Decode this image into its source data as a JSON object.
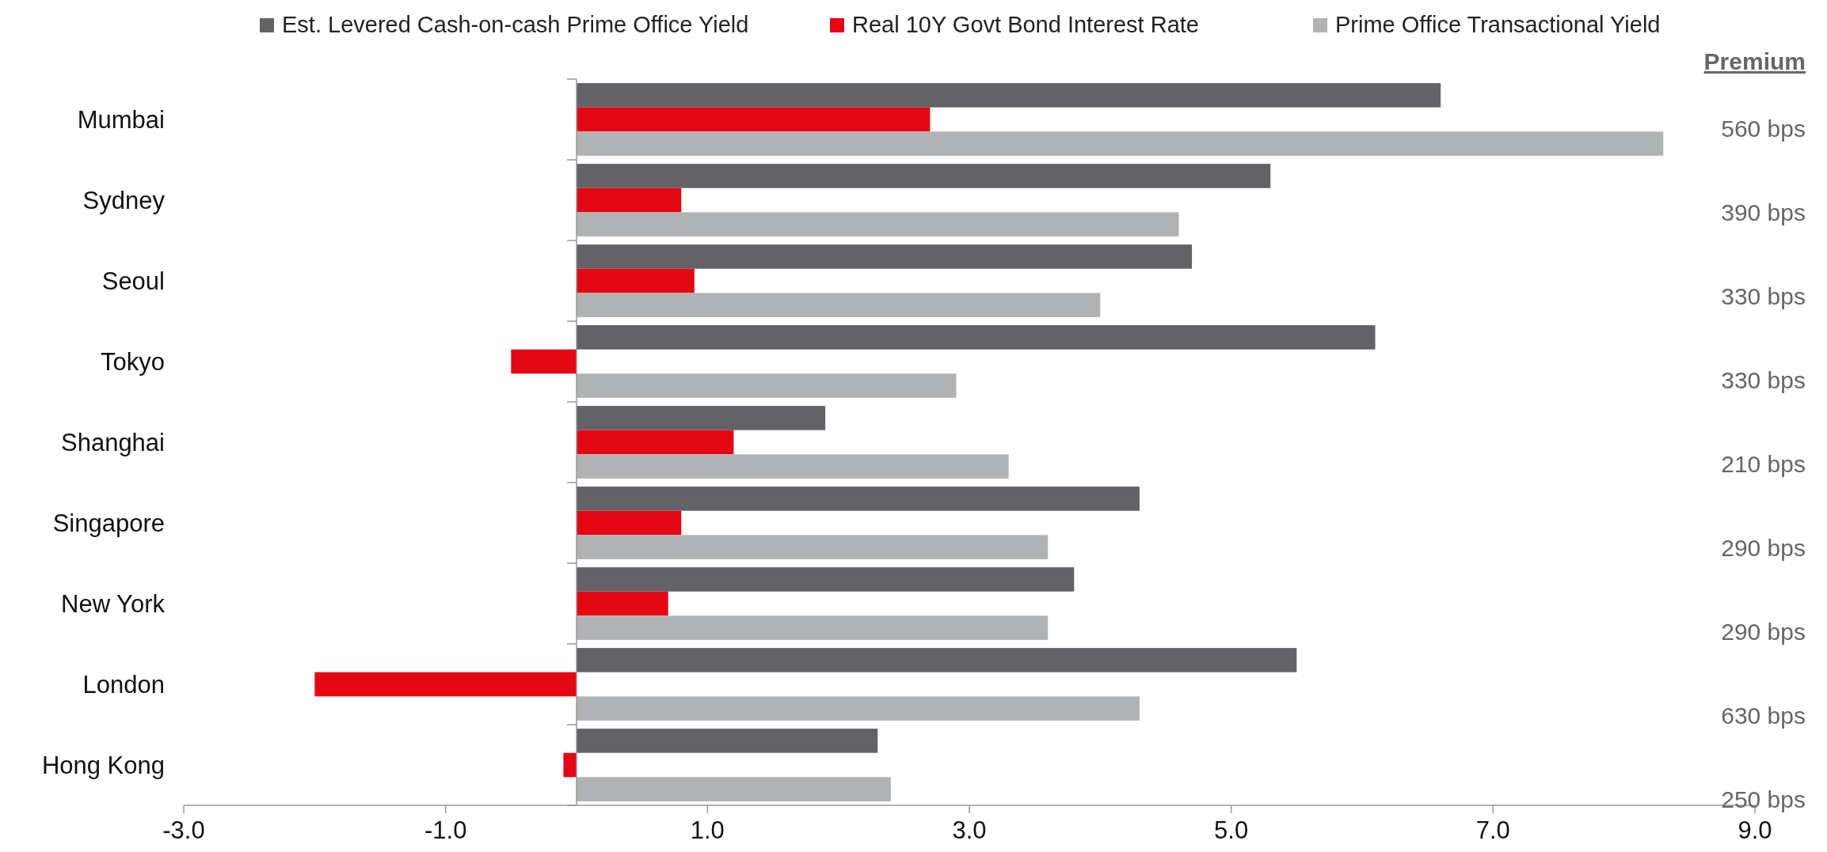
{
  "chart_data": {
    "type": "bar",
    "orientation": "horizontal",
    "categories": [
      "Mumbai",
      "Sydney",
      "Seoul",
      "Tokyo",
      "Shanghai",
      "Singapore",
      "New York",
      "London",
      "Hong Kong"
    ],
    "series": [
      {
        "name": "Est. Levered Cash-on-cash Prime Office Yield",
        "color": "#626267",
        "values": [
          6.6,
          5.3,
          4.7,
          6.1,
          1.9,
          4.3,
          3.8,
          5.5,
          2.3
        ]
      },
      {
        "name": "Real 10Y Govt Bond Interest Rate",
        "color": "#e30613",
        "values": [
          2.7,
          0.8,
          0.9,
          -0.5,
          1.2,
          0.8,
          0.7,
          -2.0,
          -0.1
        ]
      },
      {
        "name": "Prime Office Transactional Yield",
        "color": "#b1b2b4",
        "values": [
          8.3,
          4.6,
          4.0,
          2.9,
          3.3,
          3.6,
          3.6,
          4.3,
          2.4
        ]
      }
    ],
    "xlim": [
      -3,
      9
    ],
    "xticks": [
      {
        "value": -3,
        "label": "-3.0"
      },
      {
        "value": -1,
        "label": "-1.0"
      },
      {
        "value": 1,
        "label": "1.0"
      },
      {
        "value": 3,
        "label": "3.0"
      },
      {
        "value": 5,
        "label": "5.0"
      },
      {
        "value": 7,
        "label": "7.0"
      },
      {
        "value": 9,
        "label": "9.0"
      }
    ],
    "legend": "top",
    "annotations": [
      "Premium",
      "560 bps",
      "390 bps",
      "330 bps",
      "330 bps",
      "210 bps",
      "290 bps",
      "290 bps",
      "630 bps",
      "250 bps"
    ]
  }
}
